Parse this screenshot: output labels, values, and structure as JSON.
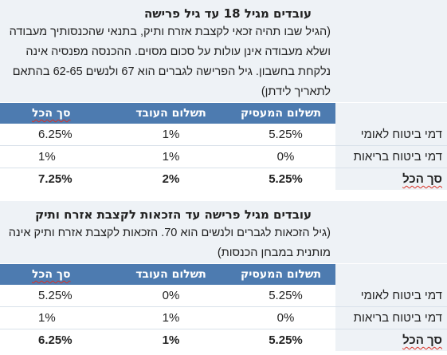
{
  "table1": {
    "title": "עובדים מגיל 18 עד גיל פרישה",
    "description": "(הגיל שבו תהיה זכאי לקצבת אזרח ותיק, בתנאי שהכנסותיך מעבודה ושלא מעבודה אינן עולות על סכום מסוים. ההכנסה מפנסיה אינה נלקחת בחשבון. גיל הפרישה לגברים הוא 67 ולנשים 62-65 בהתאם לתאריך לידתן)",
    "headers": {
      "employer": "תשלום המעסיק",
      "employee": "תשלום העובד",
      "total": "סך הכל"
    },
    "rows": [
      {
        "label": "דמי ביטוח לאומי",
        "employer": "5.25%",
        "employee": "1%",
        "total": "6.25%"
      },
      {
        "label": "דמי ביטוח בריאות",
        "employer": "0%",
        "employee": "1%",
        "total": "1%"
      },
      {
        "label": "סך הכל",
        "employer": "5.25%",
        "employee": "2%",
        "total": "7.25%"
      }
    ]
  },
  "table2": {
    "title": "עובדים מגיל פרישה עד הזכאות לקצבת אזרח ותיק",
    "description": "(גיל הזכאות לגברים ולנשים הוא 70. הזכאות לקצבת אזרח ותיק אינה מותנית במבחן הכנסות)",
    "headers": {
      "employer": "תשלום המעסיק",
      "employee": "תשלום העובד",
      "total": "סך הכל"
    },
    "rows": [
      {
        "label": "דמי ביטוח לאומי",
        "employer": "5.25%",
        "employee": "0%",
        "total": "5.25%"
      },
      {
        "label": "דמי ביטוח בריאות",
        "employer": "0%",
        "employee": "1%",
        "total": "1%"
      },
      {
        "label": "סך הכל",
        "employer": "5.25%",
        "employee": "1%",
        "total": "6.25%"
      }
    ]
  }
}
